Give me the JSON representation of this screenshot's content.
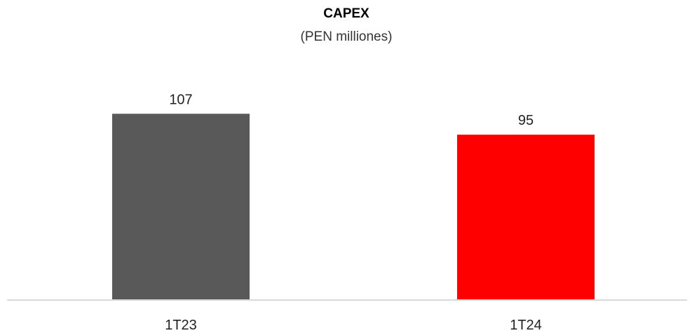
{
  "chart_data": {
    "type": "bar",
    "title": "CAPEX",
    "subtitle": "(PEN milliones)",
    "categories": [
      "1T23",
      "1T24"
    ],
    "values": [
      107,
      95
    ],
    "data_labels": [
      "107",
      "95"
    ],
    "colors": [
      "#595959",
      "#ff0000"
    ],
    "axis_color": "#d9d9d9",
    "ylim": [
      0,
      120
    ],
    "grid": false,
    "legend": "none"
  }
}
